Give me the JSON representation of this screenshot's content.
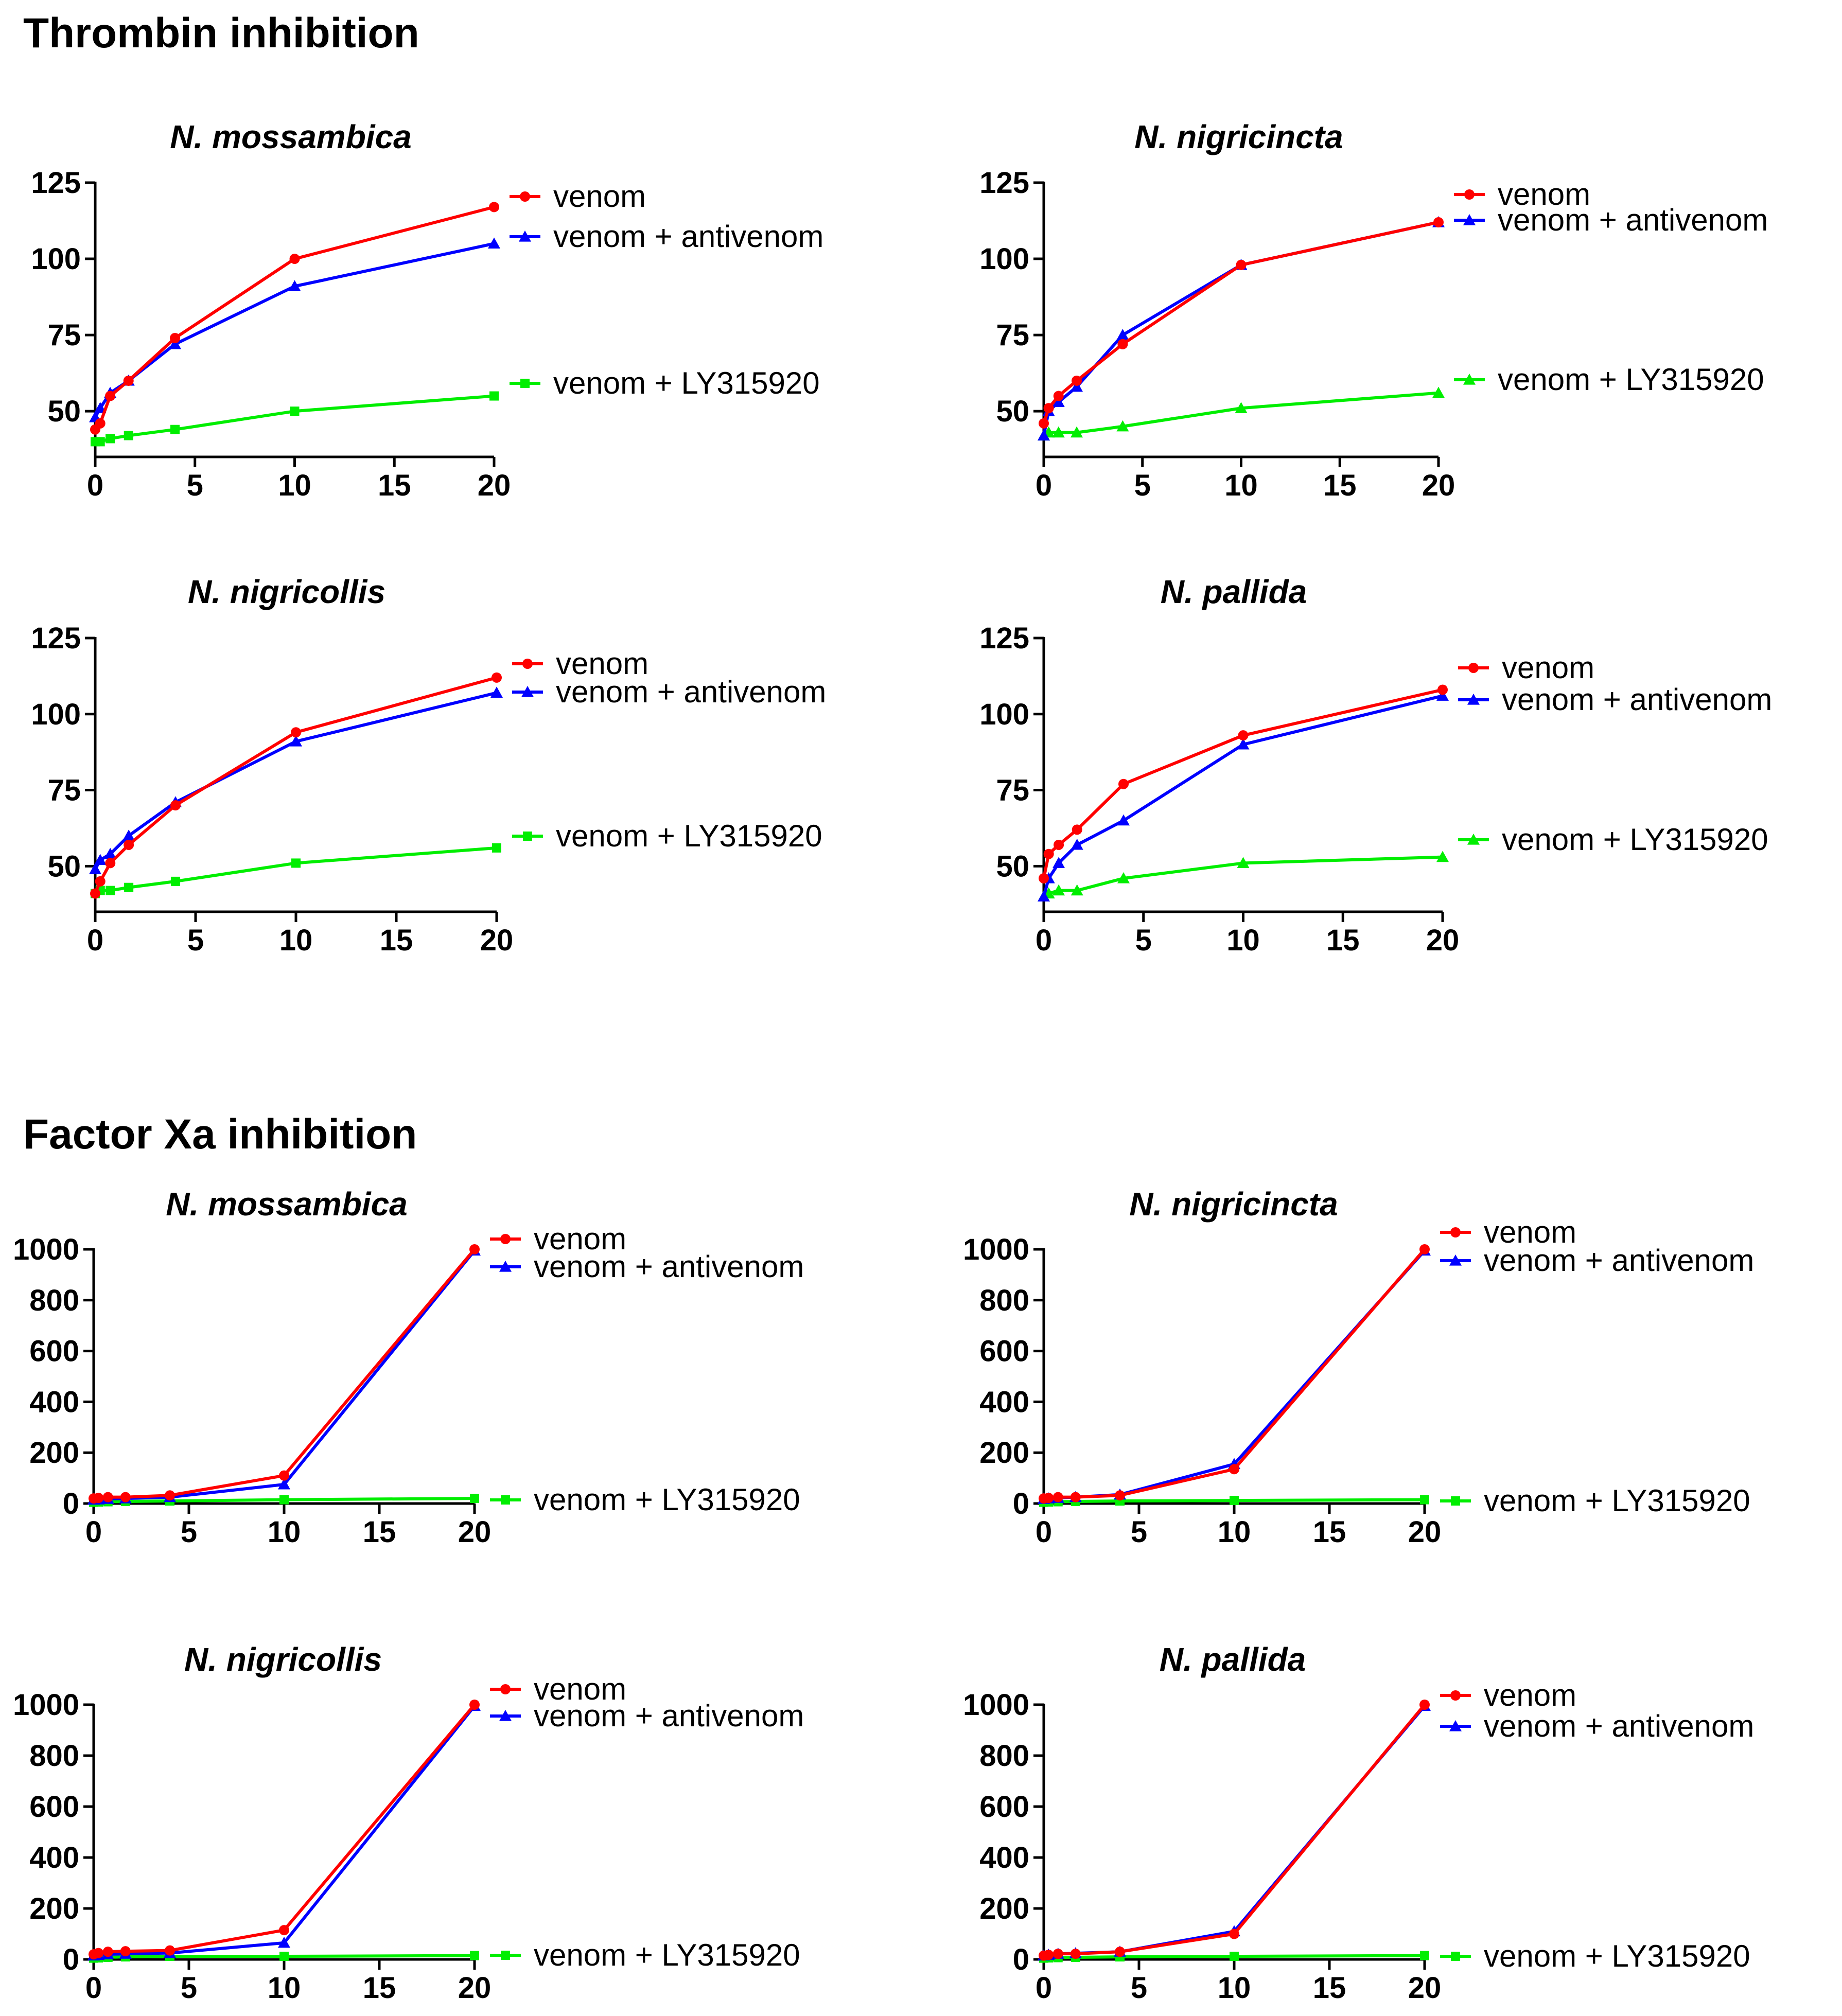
{
  "sections": [
    {
      "title": "Thrombin inhibition",
      "panels": [
        {
          "title": "N. mossambica"
        },
        {
          "title": "N. nigricincta"
        },
        {
          "title": "N. nigricollis"
        },
        {
          "title": "N. pallida"
        }
      ]
    },
    {
      "title": "Factor Xa inhibition",
      "panels": [
        {
          "title": "N. mossambica"
        },
        {
          "title": "N. nigricincta"
        },
        {
          "title": "N. nigricollis"
        },
        {
          "title": "N. pallida"
        }
      ]
    }
  ],
  "colors": {
    "venom": "#ff0000",
    "antivenom": "#0000ff",
    "inhibitor": "#00ee00"
  },
  "chart_data": [
    {
      "type": "line",
      "section": "Thrombin inhibition",
      "title": "N. mossambica",
      "xlim": [
        0,
        20
      ],
      "ylim": [
        35,
        125
      ],
      "xticks": [
        0,
        5,
        10,
        15,
        20
      ],
      "yticks": [
        50,
        75,
        100,
        125
      ],
      "series": [
        {
          "name": "venom",
          "color": "#ff0000",
          "marker": "circle",
          "x": [
            0,
            0.25,
            0.75,
            1.67,
            4,
            10,
            20
          ],
          "y": [
            44,
            46,
            55,
            60,
            74,
            100,
            117
          ]
        },
        {
          "name": "venom + antivenom",
          "color": "#0000ff",
          "marker": "triangle",
          "x": [
            0,
            0.25,
            0.75,
            1.67,
            4,
            10,
            20
          ],
          "y": [
            48,
            51,
            56,
            60,
            72,
            91,
            105
          ]
        },
        {
          "name": "venom + LY315920",
          "color": "#00ee00",
          "marker": "square",
          "x": [
            0,
            0.25,
            0.75,
            1.67,
            4,
            10,
            20
          ],
          "y": [
            40,
            40,
            41,
            42,
            44,
            50,
            55
          ]
        }
      ]
    },
    {
      "type": "line",
      "section": "Thrombin inhibition",
      "title": "N. nigricincta",
      "xlim": [
        0,
        20
      ],
      "ylim": [
        35,
        125
      ],
      "xticks": [
        0,
        5,
        10,
        15,
        20
      ],
      "yticks": [
        50,
        75,
        100,
        125
      ],
      "series": [
        {
          "name": "venom",
          "color": "#ff0000",
          "marker": "circle",
          "x": [
            0,
            0.25,
            0.75,
            1.67,
            4,
            10,
            20
          ],
          "y": [
            46,
            51,
            55,
            60,
            72,
            98,
            112
          ]
        },
        {
          "name": "venom + antivenom",
          "color": "#0000ff",
          "marker": "triangle",
          "x": [
            0,
            0.25,
            0.75,
            1.67,
            4,
            10,
            20
          ],
          "y": [
            42,
            50,
            53,
            58,
            75,
            98,
            112
          ]
        },
        {
          "name": "venom + LY315920",
          "color": "#00ee00",
          "marker": "triangle",
          "x": [
            0,
            0.25,
            0.75,
            1.67,
            4,
            10,
            20
          ],
          "y": [
            42,
            43,
            43,
            43,
            45,
            51,
            56
          ]
        }
      ]
    },
    {
      "type": "line",
      "section": "Thrombin inhibition",
      "title": "N. nigricollis",
      "xlim": [
        0,
        20
      ],
      "ylim": [
        35,
        125
      ],
      "xticks": [
        0,
        5,
        10,
        15,
        20
      ],
      "yticks": [
        50,
        75,
        100,
        125
      ],
      "series": [
        {
          "name": "venom",
          "color": "#ff0000",
          "marker": "circle",
          "x": [
            0,
            0.25,
            0.75,
            1.67,
            4,
            10,
            20
          ],
          "y": [
            41,
            45,
            51,
            57,
            70,
            94,
            112
          ]
        },
        {
          "name": "venom + antivenom",
          "color": "#0000ff",
          "marker": "triangle",
          "x": [
            0,
            0.25,
            0.75,
            1.67,
            4,
            10,
            20
          ],
          "y": [
            49,
            52,
            54,
            60,
            71,
            91,
            107
          ]
        },
        {
          "name": "venom + LY315920",
          "color": "#00ee00",
          "marker": "square",
          "x": [
            0,
            0.25,
            0.75,
            1.67,
            4,
            10,
            20
          ],
          "y": [
            41,
            42,
            42,
            43,
            45,
            51,
            56
          ]
        }
      ]
    },
    {
      "type": "line",
      "section": "Thrombin inhibition",
      "title": "N. pallida",
      "xlim": [
        0,
        20
      ],
      "ylim": [
        35,
        125
      ],
      "xticks": [
        0,
        5,
        10,
        15,
        20
      ],
      "yticks": [
        50,
        75,
        100,
        125
      ],
      "series": [
        {
          "name": "venom",
          "color": "#ff0000",
          "marker": "circle",
          "x": [
            0,
            0.25,
            0.75,
            1.67,
            4,
            10,
            20
          ],
          "y": [
            46,
            54,
            57,
            62,
            77,
            93,
            108
          ]
        },
        {
          "name": "venom + antivenom",
          "color": "#0000ff",
          "marker": "triangle",
          "x": [
            0,
            0.25,
            0.75,
            1.67,
            4,
            10,
            20
          ],
          "y": [
            40,
            46,
            51,
            57,
            65,
            90,
            106
          ]
        },
        {
          "name": "venom + LY315920",
          "color": "#00ee00",
          "marker": "triangle",
          "x": [
            0,
            0.25,
            0.75,
            1.67,
            4,
            10,
            20
          ],
          "y": [
            40,
            41,
            42,
            42,
            46,
            51,
            53
          ]
        }
      ]
    },
    {
      "type": "line",
      "section": "Factor Xa inhibition",
      "title": "N. mossambica",
      "xlim": [
        0,
        20
      ],
      "ylim": [
        0,
        1000
      ],
      "xticks": [
        0,
        5,
        10,
        15,
        20
      ],
      "yticks": [
        0,
        200,
        400,
        600,
        800,
        1000
      ],
      "series": [
        {
          "name": "venom",
          "color": "#ff0000",
          "marker": "circle",
          "x": [
            0,
            0.25,
            0.75,
            1.67,
            4,
            10,
            20
          ],
          "y": [
            20,
            22,
            25,
            25,
            32,
            110,
            1000
          ]
        },
        {
          "name": "venom + antivenom",
          "color": "#0000ff",
          "marker": "triangle",
          "x": [
            0,
            0.25,
            0.75,
            1.67,
            4,
            10,
            20
          ],
          "y": [
            15,
            16,
            18,
            20,
            25,
            75,
            995
          ]
        },
        {
          "name": "venom + LY315920",
          "color": "#00ee00",
          "marker": "square",
          "x": [
            0,
            0.25,
            0.75,
            1.67,
            4,
            10,
            20
          ],
          "y": [
            5,
            6,
            7,
            8,
            10,
            15,
            20
          ]
        }
      ]
    },
    {
      "type": "line",
      "section": "Factor Xa inhibition",
      "title": "N. nigricincta",
      "xlim": [
        0,
        20
      ],
      "ylim": [
        0,
        1000
      ],
      "xticks": [
        0,
        5,
        10,
        15,
        20
      ],
      "yticks": [
        0,
        200,
        400,
        600,
        800,
        1000
      ],
      "series": [
        {
          "name": "venom",
          "color": "#ff0000",
          "marker": "circle",
          "x": [
            0,
            0.25,
            0.75,
            1.67,
            4,
            10,
            20
          ],
          "y": [
            20,
            22,
            25,
            25,
            32,
            135,
            1000
          ]
        },
        {
          "name": "venom + antivenom",
          "color": "#0000ff",
          "marker": "triangle",
          "x": [
            0,
            0.25,
            0.75,
            1.67,
            4,
            10,
            20
          ],
          "y": [
            18,
            20,
            22,
            25,
            35,
            155,
            995
          ]
        },
        {
          "name": "venom + LY315920",
          "color": "#00ee00",
          "marker": "square",
          "x": [
            0,
            0.25,
            0.75,
            1.67,
            4,
            10,
            20
          ],
          "y": [
            5,
            6,
            7,
            8,
            10,
            12,
            15
          ]
        }
      ]
    },
    {
      "type": "line",
      "section": "Factor Xa inhibition",
      "title": "N. nigricollis",
      "xlim": [
        0,
        20
      ],
      "ylim": [
        0,
        1000
      ],
      "xticks": [
        0,
        5,
        10,
        15,
        20
      ],
      "yticks": [
        0,
        200,
        400,
        600,
        800,
        1000
      ],
      "series": [
        {
          "name": "venom",
          "color": "#ff0000",
          "marker": "circle",
          "x": [
            0,
            0.25,
            0.75,
            1.67,
            4,
            10,
            20
          ],
          "y": [
            20,
            25,
            30,
            32,
            35,
            115,
            1000
          ]
        },
        {
          "name": "venom + antivenom",
          "color": "#0000ff",
          "marker": "triangle",
          "x": [
            0,
            0.25,
            0.75,
            1.67,
            4,
            10,
            20
          ],
          "y": [
            15,
            17,
            20,
            22,
            25,
            65,
            995
          ]
        },
        {
          "name": "venom + LY315920",
          "color": "#00ee00",
          "marker": "square",
          "x": [
            0,
            0.25,
            0.75,
            1.67,
            4,
            10,
            20
          ],
          "y": [
            5,
            6,
            8,
            10,
            12,
            12,
            15
          ]
        }
      ]
    },
    {
      "type": "line",
      "section": "Factor Xa inhibition",
      "title": "N. pallida",
      "xlim": [
        0,
        20
      ],
      "ylim": [
        0,
        1000
      ],
      "xticks": [
        0,
        5,
        10,
        15,
        20
      ],
      "yticks": [
        0,
        200,
        400,
        600,
        800,
        1000
      ],
      "series": [
        {
          "name": "venom",
          "color": "#ff0000",
          "marker": "circle",
          "x": [
            0,
            0.25,
            0.75,
            1.67,
            4,
            10,
            20
          ],
          "y": [
            15,
            18,
            22,
            22,
            30,
            100,
            1000
          ]
        },
        {
          "name": "venom + antivenom",
          "color": "#0000ff",
          "marker": "triangle",
          "x": [
            0,
            0.25,
            0.75,
            1.67,
            4,
            10,
            20
          ],
          "y": [
            15,
            18,
            22,
            24,
            30,
            110,
            995
          ]
        },
        {
          "name": "venom + LY315920",
          "color": "#00ee00",
          "marker": "square",
          "x": [
            0,
            0.25,
            0.75,
            1.67,
            4,
            10,
            20
          ],
          "y": [
            5,
            6,
            7,
            8,
            10,
            12,
            15
          ]
        }
      ]
    }
  ]
}
